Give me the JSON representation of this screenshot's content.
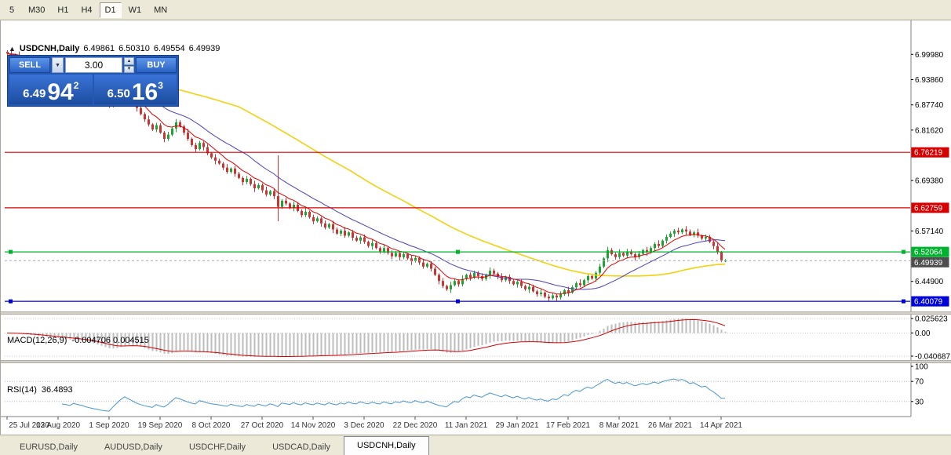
{
  "toolbar": {
    "timeframes": [
      "5",
      "M30",
      "H1",
      "H4",
      "D1",
      "W1",
      "MN"
    ],
    "active": "D1"
  },
  "chart_header": {
    "collapse_icon": "▲",
    "symbol": "USDCNH,Daily",
    "open": "6.49861",
    "high": "6.50310",
    "low": "6.49554",
    "close": "6.49939"
  },
  "trade_panel": {
    "sell_label": "SELL",
    "buy_label": "BUY",
    "volume": "3.00",
    "dropdown_icon": "▼",
    "up_icon": "▲",
    "down_icon": "▼",
    "bid_big": "6.49",
    "bid_pips": "94",
    "bid_sup": "2",
    "ask_big": "6.50",
    "ask_pips": "16",
    "ask_sup": "3"
  },
  "tabs": {
    "items": [
      "EURUSD,Daily",
      "AUDUSD,Daily",
      "USDCHF,Daily",
      "USDCAD,Daily",
      "USDCNH,Daily"
    ],
    "active": "USDCNH,Daily"
  },
  "chart_data": {
    "type": "candlestick",
    "title": "USDCNH,Daily",
    "symbol": "USDCNH",
    "timeframe": "Daily",
    "style": {
      "bull": "#1fa332",
      "bear": "#cc3333",
      "ma_fast": "#e00000",
      "ma_mid": "#4a3fc0",
      "ma_slow": "#f2d10e",
      "macd_bar": "#bdbdbd",
      "macd_signal": "#d40000",
      "rsi_line": "#4795d1",
      "axis_text": "#000000",
      "red_level": "#d60000",
      "green_level": "#00b22d",
      "blue_level": "#0000d8",
      "bid_label_bg": "#4d4d4d"
    },
    "price_axis": {
      "min": 6.3762,
      "max": 7.0823,
      "ticks": [
        6.9998,
        6.9386,
        6.8774,
        6.8162,
        6.755,
        6.6938,
        6.6326,
        6.5714,
        6.5102,
        6.449,
        6.3878
      ]
    },
    "hlines": [
      {
        "value": 6.76219,
        "label": "6.76219",
        "color": "#d60000",
        "handles": false
      },
      {
        "value": 6.62759,
        "label": "6.62759",
        "color": "#d60000",
        "handles": false
      },
      {
        "value": 6.52064,
        "label": "6.52064",
        "color": "#00b22d",
        "handles": true
      },
      {
        "value": 6.40079,
        "label": "6.40079",
        "color": "#0000d8",
        "handles": true
      }
    ],
    "current_price": {
      "value": 6.49939,
      "label": "6.49939"
    },
    "moving_averages": [
      {
        "name": "fast",
        "type": "ema",
        "period": 8
      },
      {
        "name": "mid",
        "type": "sma",
        "period": 20
      },
      {
        "name": "slow",
        "type": "sma",
        "period": 60
      }
    ],
    "x_labels": [
      {
        "label": "25 Jul 2020",
        "index": 0
      },
      {
        "label": "13 Aug 2020",
        "index": 13
      },
      {
        "label": "1 Sep 2020",
        "index": 26
      },
      {
        "label": "19 Sep 2020",
        "index": 39
      },
      {
        "label": "8 Oct 2020",
        "index": 52
      },
      {
        "label": "27 Oct 2020",
        "index": 65
      },
      {
        "label": "14 Nov 2020",
        "index": 78
      },
      {
        "label": "3 Dec 2020",
        "index": 91
      },
      {
        "label": "22 Dec 2020",
        "index": 104
      },
      {
        "label": "11 Jan 2021",
        "index": 117
      },
      {
        "label": "29 Jan 2021",
        "index": 130
      },
      {
        "label": "17 Feb 2021",
        "index": 143
      },
      {
        "label": "8 Mar 2021",
        "index": 156
      },
      {
        "label": "26 Mar 2021",
        "index": 169
      },
      {
        "label": "14 Apr 2021",
        "index": 182
      }
    ],
    "macd": {
      "label": "MACD(12,26,9)",
      "values_text": "-0.004706 0.004515",
      "fast": 12,
      "slow": 26,
      "signal": 9,
      "scale_max": 0.025623,
      "scale_min": -0.040687,
      "axis": [
        {
          "value": 0.025623,
          "label": "0.025623"
        },
        {
          "value": 0,
          "label": "0.00"
        },
        {
          "value": -0.040687,
          "label": "-0.040687"
        }
      ]
    },
    "rsi": {
      "label": "RSI(14)",
      "value_text": "36.4893",
      "period": 14,
      "axis": [
        {
          "value": 100,
          "label": "100"
        },
        {
          "value": 70,
          "label": "70"
        },
        {
          "value": 30,
          "label": "30"
        }
      ],
      "dotted_levels": [
        70,
        30
      ]
    },
    "candles": [
      [
        7.006,
        7.01,
        6.994,
        7.002
      ],
      [
        7.002,
        7.009,
        6.991,
        6.996
      ],
      [
        6.996,
        7.002,
        6.992,
        6.999
      ],
      [
        6.999,
        7.007,
        6.981,
        6.99
      ],
      [
        6.99,
        6.998,
        6.987,
        6.993
      ],
      [
        6.993,
        6.997,
        6.979,
        6.985
      ],
      [
        6.985,
        6.994,
        6.975,
        6.98
      ],
      [
        6.98,
        6.989,
        6.976,
        6.986
      ],
      [
        6.986,
        6.992,
        6.97,
        6.977
      ],
      [
        6.977,
        6.982,
        6.969,
        6.972
      ],
      [
        6.972,
        6.98,
        6.964,
        6.976
      ],
      [
        6.976,
        6.983,
        6.963,
        6.968
      ],
      [
        6.968,
        6.971,
        6.96,
        6.964
      ],
      [
        6.964,
        6.977,
        6.955,
        6.969
      ],
      [
        6.969,
        6.974,
        6.957,
        6.96
      ],
      [
        6.96,
        6.964,
        6.95,
        6.956
      ],
      [
        6.956,
        6.965,
        6.945,
        6.95
      ],
      [
        6.95,
        6.9575,
        6.946,
        6.9545
      ],
      [
        6.9545,
        6.9605,
        6.939,
        6.946
      ],
      [
        6.946,
        6.951,
        6.939,
        6.942
      ],
      [
        6.942,
        6.946,
        6.922,
        6.93
      ],
      [
        6.93,
        6.937,
        6.916,
        6.921
      ],
      [
        6.921,
        6.924,
        6.908,
        6.912
      ],
      [
        6.912,
        6.92,
        6.894,
        6.903
      ],
      [
        6.903,
        6.908,
        6.887,
        6.89
      ],
      [
        6.89,
        6.894,
        6.876,
        6.882
      ],
      [
        6.882,
        6.891,
        6.87,
        6.875
      ],
      [
        6.875,
        6.888,
        6.871,
        6.885
      ],
      [
        6.885,
        6.901,
        6.878,
        6.895
      ],
      [
        6.895,
        6.911,
        6.892,
        6.906
      ],
      [
        6.906,
        6.919,
        6.898,
        6.915
      ],
      [
        6.915,
        6.922,
        6.897,
        6.902
      ],
      [
        6.902,
        6.905,
        6.884,
        6.888
      ],
      [
        6.888,
        6.896,
        6.861,
        6.87
      ],
      [
        6.87,
        6.875,
        6.852,
        6.855
      ],
      [
        6.855,
        6.859,
        6.836,
        6.842
      ],
      [
        6.842,
        6.851,
        6.825,
        6.83
      ],
      [
        6.83,
        6.833,
        6.814,
        6.818
      ],
      [
        6.818,
        6.834,
        6.811,
        6.828
      ],
      [
        6.828,
        6.833,
        6.807,
        6.81
      ],
      [
        6.81,
        6.814,
        6.787,
        6.795
      ],
      [
        6.795,
        6.812,
        6.79,
        6.805
      ],
      [
        6.805,
        6.823,
        6.801,
        6.82
      ],
      [
        6.82,
        6.843,
        6.811,
        6.835
      ],
      [
        6.835,
        6.84,
        6.822,
        6.825
      ],
      [
        6.825,
        6.829,
        6.804,
        6.81
      ],
      [
        6.81,
        6.819,
        6.79,
        6.795
      ],
      [
        6.795,
        6.798,
        6.776,
        6.78
      ],
      [
        6.78,
        6.786,
        6.763,
        6.77
      ],
      [
        6.77,
        6.79,
        6.767,
        6.785
      ],
      [
        6.785,
        6.789,
        6.767,
        6.775
      ],
      [
        6.775,
        6.782,
        6.755,
        6.76
      ],
      [
        6.76,
        6.763,
        6.746,
        6.75
      ],
      [
        6.75,
        6.758,
        6.733,
        6.742
      ],
      [
        6.742,
        6.747,
        6.732,
        6.735
      ],
      [
        6.735,
        6.739,
        6.719,
        6.725
      ],
      [
        6.725,
        6.734,
        6.71,
        6.715
      ],
      [
        6.715,
        6.726,
        6.711,
        6.723
      ],
      [
        6.723,
        6.729,
        6.703,
        6.71
      ],
      [
        6.71,
        6.715,
        6.697,
        6.7
      ],
      [
        6.7,
        6.704,
        6.682,
        6.69
      ],
      [
        6.69,
        6.705,
        6.685,
        6.698
      ],
      [
        6.698,
        6.701,
        6.681,
        6.685
      ],
      [
        6.685,
        6.693,
        6.666,
        6.675
      ],
      [
        6.675,
        6.688,
        6.672,
        6.683
      ],
      [
        6.683,
        6.687,
        6.664,
        6.67
      ],
      [
        6.67,
        6.679,
        6.655,
        6.66
      ],
      [
        6.66,
        6.671,
        6.656,
        6.668
      ],
      [
        6.668,
        6.674,
        6.649,
        6.656
      ],
      [
        6.656,
        6.755,
        6.595,
        6.63
      ],
      [
        6.63,
        6.649,
        6.625,
        6.645
      ],
      [
        6.645,
        6.652,
        6.633,
        6.638
      ],
      [
        6.638,
        6.641,
        6.624,
        6.628
      ],
      [
        6.628,
        6.643,
        6.619,
        6.635
      ],
      [
        6.635,
        6.64,
        6.617,
        6.62
      ],
      [
        6.62,
        6.624,
        6.604,
        6.61
      ],
      [
        6.61,
        6.627,
        6.605,
        6.618
      ],
      [
        6.618,
        6.621,
        6.601,
        6.605
      ],
      [
        6.605,
        6.611,
        6.588,
        6.595
      ],
      [
        6.595,
        6.607,
        6.592,
        6.602
      ],
      [
        6.602,
        6.606,
        6.582,
        6.59
      ],
      [
        6.59,
        6.597,
        6.575,
        6.58
      ],
      [
        6.58,
        6.591,
        6.576,
        6.588
      ],
      [
        6.588,
        6.596,
        6.566,
        6.575
      ],
      [
        6.575,
        6.58,
        6.562,
        6.565
      ],
      [
        6.565,
        6.576,
        6.559,
        6.572
      ],
      [
        6.572,
        6.581,
        6.555,
        6.56
      ],
      [
        6.56,
        6.571,
        6.556,
        6.568
      ],
      [
        6.568,
        6.574,
        6.548,
        6.555
      ],
      [
        6.555,
        6.56,
        6.545,
        6.548
      ],
      [
        6.548,
        6.56,
        6.54,
        6.556
      ],
      [
        6.556,
        6.563,
        6.54,
        6.545
      ],
      [
        6.545,
        6.548,
        6.531,
        6.535
      ],
      [
        6.535,
        6.55,
        6.526,
        6.542
      ],
      [
        6.542,
        6.547,
        6.527,
        6.53
      ],
      [
        6.53,
        6.534,
        6.516,
        6.522
      ],
      [
        6.522,
        6.539,
        6.517,
        6.53
      ],
      [
        6.53,
        6.533,
        6.514,
        6.518
      ],
      [
        6.518,
        6.524,
        6.503,
        6.51
      ],
      [
        6.51,
        6.523,
        6.507,
        6.518
      ],
      [
        6.518,
        6.522,
        6.5,
        6.508
      ],
      [
        6.508,
        6.522,
        6.503,
        6.515
      ],
      [
        6.515,
        6.518,
        6.501,
        6.505
      ],
      [
        6.505,
        6.513,
        6.489,
        6.498
      ],
      [
        6.498,
        6.511,
        6.495,
        6.506
      ],
      [
        6.506,
        6.51,
        6.489,
        6.495
      ],
      [
        6.495,
        6.504,
        6.48,
        6.485
      ],
      [
        6.485,
        6.495,
        6.481,
        6.492
      ],
      [
        6.492,
        6.498,
        6.473,
        6.48
      ],
      [
        6.48,
        6.485,
        6.462,
        6.465
      ],
      [
        6.465,
        6.469,
        6.442,
        6.45
      ],
      [
        6.45,
        6.457,
        6.433,
        6.438
      ],
      [
        6.438,
        6.441,
        6.426,
        6.43
      ],
      [
        6.43,
        6.448,
        6.421,
        6.44
      ],
      [
        6.44,
        6.455,
        6.437,
        6.45
      ],
      [
        6.45,
        6.454,
        6.436,
        6.442
      ],
      [
        6.442,
        6.464,
        6.437,
        6.455
      ],
      [
        6.455,
        6.468,
        6.451,
        6.465
      ],
      [
        6.465,
        6.471,
        6.451,
        6.458
      ],
      [
        6.458,
        6.475,
        6.455,
        6.47
      ],
      [
        6.47,
        6.474,
        6.454,
        6.462
      ],
      [
        6.462,
        6.469,
        6.45,
        6.455
      ],
      [
        6.455,
        6.468,
        6.451,
        6.465
      ],
      [
        6.465,
        6.483,
        6.456,
        6.475
      ],
      [
        6.475,
        6.48,
        6.465,
        6.468
      ],
      [
        6.468,
        6.472,
        6.454,
        6.46
      ],
      [
        6.46,
        6.469,
        6.447,
        6.452
      ],
      [
        6.452,
        6.463,
        6.448,
        6.46
      ],
      [
        6.46,
        6.466,
        6.443,
        6.45
      ],
      [
        6.45,
        6.455,
        6.439,
        6.442
      ],
      [
        6.442,
        6.452,
        6.434,
        6.448
      ],
      [
        6.448,
        6.455,
        6.433,
        6.438
      ],
      [
        6.438,
        6.441,
        6.426,
        6.43
      ],
      [
        6.43,
        6.444,
        6.421,
        6.436
      ],
      [
        6.436,
        6.441,
        6.422,
        6.425
      ],
      [
        6.425,
        6.429,
        6.412,
        6.418
      ],
      [
        6.418,
        6.431,
        6.413,
        6.422
      ],
      [
        6.422,
        6.425,
        6.408,
        6.412
      ],
      [
        6.412,
        6.418,
        6.401,
        6.408
      ],
      [
        6.408,
        6.42,
        6.405,
        6.415
      ],
      [
        6.415,
        6.419,
        6.402,
        6.41
      ],
      [
        6.41,
        6.425,
        6.405,
        6.418
      ],
      [
        6.418,
        6.431,
        6.414,
        6.428
      ],
      [
        6.428,
        6.436,
        6.413,
        6.422
      ],
      [
        6.422,
        6.44,
        6.419,
        6.435
      ],
      [
        6.435,
        6.449,
        6.429,
        6.445
      ],
      [
        6.445,
        6.454,
        6.435,
        6.44
      ],
      [
        6.44,
        6.455,
        6.436,
        6.452
      ],
      [
        6.452,
        6.468,
        6.445,
        6.462
      ],
      [
        6.462,
        6.467,
        6.453,
        6.456
      ],
      [
        6.456,
        6.474,
        6.448,
        6.47
      ],
      [
        6.47,
        6.492,
        6.465,
        6.485
      ],
      [
        6.485,
        6.508,
        6.481,
        6.505
      ],
      [
        6.505,
        6.533,
        6.496,
        6.525
      ],
      [
        6.525,
        6.53,
        6.512,
        6.515
      ],
      [
        6.515,
        6.519,
        6.502,
        6.508
      ],
      [
        6.508,
        6.527,
        6.503,
        6.518
      ],
      [
        6.518,
        6.521,
        6.508,
        6.512
      ],
      [
        6.512,
        6.528,
        6.505,
        6.522
      ],
      [
        6.522,
        6.527,
        6.512,
        6.515
      ],
      [
        6.515,
        6.519,
        6.5,
        6.508
      ],
      [
        6.508,
        6.523,
        6.503,
        6.516
      ],
      [
        6.516,
        6.528,
        6.512,
        6.525
      ],
      [
        6.525,
        6.533,
        6.511,
        6.52
      ],
      [
        6.52,
        6.535,
        6.517,
        6.53
      ],
      [
        6.53,
        6.544,
        6.524,
        6.54
      ],
      [
        6.54,
        6.549,
        6.53,
        6.535
      ],
      [
        6.535,
        6.551,
        6.531,
        6.548
      ],
      [
        6.548,
        6.563,
        6.541,
        6.557
      ],
      [
        6.557,
        6.57,
        6.554,
        6.565
      ],
      [
        6.565,
        6.576,
        6.557,
        6.572
      ],
      [
        6.572,
        6.579,
        6.563,
        6.568
      ],
      [
        6.568,
        6.578,
        6.564,
        6.575
      ],
      [
        6.575,
        6.583,
        6.561,
        6.57
      ],
      [
        6.57,
        6.575,
        6.559,
        6.562
      ],
      [
        6.562,
        6.572,
        6.556,
        6.568
      ],
      [
        6.568,
        6.577,
        6.555,
        6.56
      ],
      [
        6.56,
        6.563,
        6.549,
        6.553
      ],
      [
        6.553,
        6.563,
        6.546,
        6.557
      ],
      [
        6.557,
        6.562,
        6.542,
        6.545
      ],
      [
        6.545,
        6.549,
        6.527,
        6.535
      ],
      [
        6.535,
        6.542,
        6.515,
        6.52
      ],
      [
        6.52,
        6.523,
        6.496,
        6.5
      ],
      [
        6.4986,
        6.5031,
        6.4955,
        6.4994
      ]
    ]
  }
}
